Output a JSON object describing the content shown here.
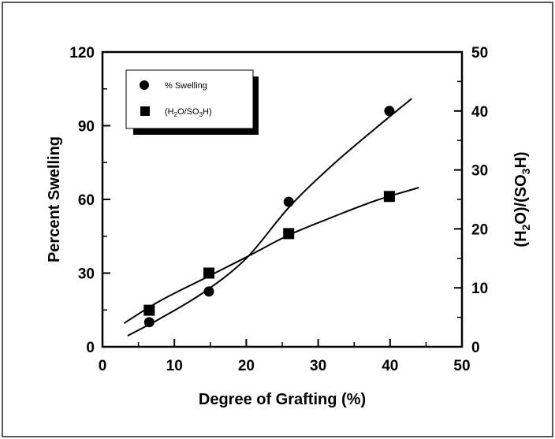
{
  "chart_data": {
    "type": "scatter",
    "title": "",
    "xlabel": "Degree of Grafting  (%)",
    "ylabel": "Percent Swelling",
    "y2label": "(H2O)/(SO3H)",
    "xlim": [
      0,
      50
    ],
    "ylim": [
      0,
      120
    ],
    "y2lim": [
      0,
      50
    ],
    "x_ticks": [
      0,
      10,
      20,
      30,
      40,
      50
    ],
    "y_ticks": [
      0,
      30,
      60,
      90,
      120
    ],
    "y2_ticks": [
      0,
      10,
      20,
      30,
      40,
      50
    ],
    "grid": false,
    "legend_position": "top-left",
    "series": [
      {
        "name": "% Swelling",
        "axis": "left",
        "marker": "circle",
        "points": [
          [
            6.5,
            10
          ],
          [
            14.8,
            22.5
          ],
          [
            25.9,
            59
          ],
          [
            39.9,
            96
          ]
        ],
        "fit_curve": [
          [
            3.5,
            4.5
          ],
          [
            8,
            11.5
          ],
          [
            14,
            22
          ],
          [
            20,
            36
          ],
          [
            26,
            57
          ],
          [
            32,
            74
          ],
          [
            38,
            89
          ],
          [
            43,
            101
          ]
        ]
      },
      {
        "name": "(H2O/SO3H)",
        "axis": "right",
        "marker": "square",
        "points": [
          [
            6.5,
            6.2
          ],
          [
            14.8,
            12.5
          ],
          [
            25.9,
            19.2
          ],
          [
            39.9,
            25.5
          ]
        ],
        "fit_curve": [
          [
            3,
            4
          ],
          [
            8,
            7.8
          ],
          [
            14,
            11.5
          ],
          [
            20,
            15.2
          ],
          [
            26,
            19
          ],
          [
            32,
            22
          ],
          [
            38,
            24.8
          ],
          [
            44,
            27
          ]
        ]
      }
    ]
  }
}
